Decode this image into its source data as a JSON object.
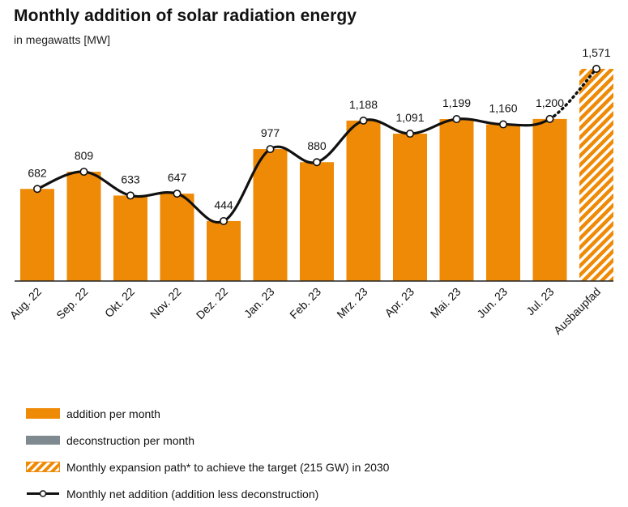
{
  "title": "Monthly addition of solar radiation energy",
  "subtitle": "in megawatts [MW]",
  "colors": {
    "bar": "#ef8a06",
    "deconstruction": "#7f8a90",
    "line": "#111111",
    "axis": "#222222"
  },
  "chart_data": {
    "type": "bar",
    "title": "Monthly addition of solar radiation energy",
    "ylabel": "in megawatts [MW]",
    "ylim": [
      0,
      1750
    ],
    "categories": [
      "Aug. 22",
      "Sep. 22",
      "Okt. 22",
      "Nov. 22",
      "Dez. 22",
      "Jan. 23",
      "Feb. 23",
      "Mrz. 23",
      "Apr. 23",
      "Mai. 23",
      "Jun. 23",
      "Jul. 23",
      "Ausbaupfad"
    ],
    "series": [
      {
        "name": "addition per month",
        "values": [
          682,
          809,
          633,
          647,
          444,
          977,
          880,
          1188,
          1091,
          1199,
          1160,
          1200,
          null
        ]
      },
      {
        "name": "Monthly expansion path* to achieve the target (215 GW) in 2030",
        "values": [
          null,
          null,
          null,
          null,
          null,
          null,
          null,
          null,
          null,
          null,
          null,
          null,
          1571
        ]
      },
      {
        "name": "Monthly net addition (addition less deconstruction)",
        "values": [
          682,
          809,
          633,
          647,
          444,
          977,
          880,
          1188,
          1091,
          1199,
          1160,
          1200,
          1571
        ]
      }
    ],
    "data_labels": [
      "682",
      "809",
      "633",
      "647",
      "444",
      "977",
      "880",
      "1,188",
      "1,091",
      "1,199",
      "1,160",
      "1,200",
      "1,571"
    ]
  },
  "legend": [
    {
      "label": "addition per month",
      "kind": "orange"
    },
    {
      "label": "deconstruction per month",
      "kind": "gray"
    },
    {
      "label": "Monthly expansion path* to achieve the target (215 GW) in 2030",
      "kind": "hatch"
    },
    {
      "label": "Monthly net addition (addition less deconstruction)",
      "kind": "line"
    }
  ]
}
